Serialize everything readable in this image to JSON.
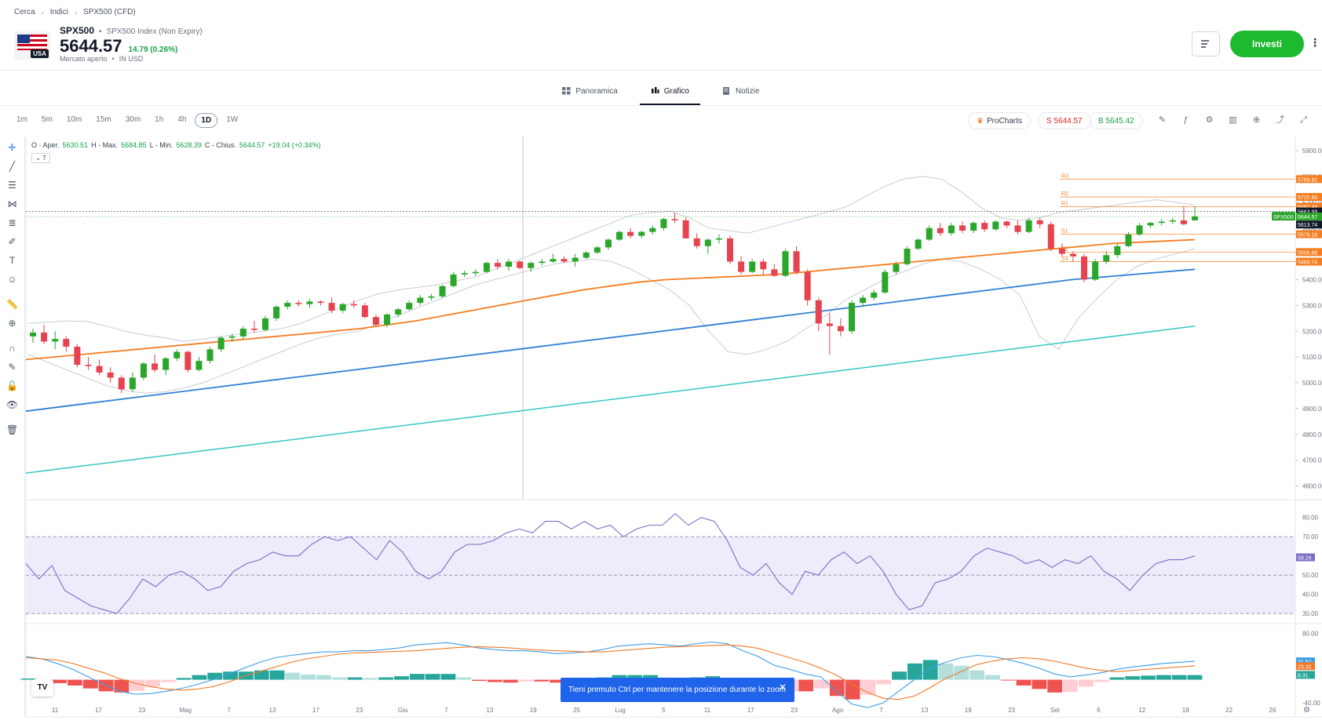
{
  "breadcrumb": [
    "Cerca",
    "Indici",
    "SPX500 (CFD)"
  ],
  "instrument": {
    "ticker": "SPX500",
    "name": "SPX500 Index (Non Expiry)",
    "flag_label": "USA",
    "price": "5644.57",
    "change": "14.79 (0.26%)",
    "status": "Mercato aperto",
    "currency": "IN USD"
  },
  "actions": {
    "invest_label": "Investi",
    "more_label": "⋮"
  },
  "tabs": [
    {
      "label": "Panoramica",
      "active": false
    },
    {
      "label": "Grafico",
      "active": true
    },
    {
      "label": "Notizie",
      "active": false
    }
  ],
  "timeframes": [
    "1m",
    "5m",
    "10m",
    "15m",
    "30m",
    "1h",
    "4h",
    "1D",
    "1W"
  ],
  "active_timeframe": "1D",
  "procharts_label": "ProCharts",
  "sell_label": "S 5644.57",
  "buy_label": "B 5645.42",
  "ohlc": {
    "open_label": "O - Aper.",
    "open": "5630.51",
    "high_label": "H - Max.",
    "high": "5684.85",
    "low_label": "L - Min.",
    "low": "5628.39",
    "close_label": "C - Chius.",
    "close": "5644.57",
    "change": "+19.04 (+0.34%)"
  },
  "collapse_label": "⌄ 7",
  "toast": "Tieni premuto Ctrl per mantenere la posizione durante lo zoom",
  "colors": {
    "up": "#2aa72a",
    "down": "#e5434f",
    "ma_orange": "#f57c1f",
    "ma_blue": "#2f7fd6",
    "ma_teal": "#34c7c4",
    "band": "#c9ccd1",
    "rsi": "#7b6fc4",
    "rsi_fill": "#efebfa",
    "macd_line": "#3e9ee6",
    "signal_line": "#f07a28"
  },
  "chart_data": {
    "type": "candlestick",
    "price_axis": [
      "5900.00",
      "5800.00",
      "5700.00",
      "5600.00",
      "5500.00",
      "5400.00",
      "5300.00",
      "5200.00",
      "5100.00",
      "5000.00",
      "4900.00",
      "4800.00",
      "4700.00",
      "4600.00"
    ],
    "price_range": [
      4550,
      5955
    ],
    "x_labels": [
      "11",
      "17",
      "23",
      "Mag",
      "7",
      "13",
      "17",
      "23",
      "Giu",
      "7",
      "13",
      "19",
      "25",
      "Lug",
      "5",
      "11",
      "17",
      "23",
      "Ago",
      "7",
      "13",
      "19",
      "23",
      "Set",
      "6",
      "12",
      "18",
      "22",
      "26"
    ],
    "candles": [
      [
        5180,
        5210,
        5155,
        5195
      ],
      [
        5195,
        5225,
        5150,
        5160
      ],
      [
        5160,
        5200,
        5130,
        5170
      ],
      [
        5170,
        5180,
        5120,
        5140
      ],
      [
        5140,
        5150,
        5060,
        5070
      ],
      [
        5070,
        5100,
        5050,
        5065
      ],
      [
        5065,
        5090,
        5030,
        5040
      ],
      [
        5040,
        5060,
        5000,
        5020
      ],
      [
        5020,
        5030,
        4960,
        4975
      ],
      [
        4975,
        5040,
        4965,
        5020
      ],
      [
        5020,
        5080,
        5010,
        5075
      ],
      [
        5075,
        5110,
        5040,
        5050
      ],
      [
        5050,
        5100,
        5030,
        5095
      ],
      [
        5095,
        5130,
        5085,
        5120
      ],
      [
        5120,
        5125,
        5040,
        5050
      ],
      [
        5050,
        5100,
        5045,
        5085
      ],
      [
        5085,
        5140,
        5075,
        5130
      ],
      [
        5130,
        5180,
        5120,
        5175
      ],
      [
        5175,
        5190,
        5160,
        5180
      ],
      [
        5180,
        5220,
        5170,
        5210
      ],
      [
        5210,
        5240,
        5195,
        5205
      ],
      [
        5205,
        5260,
        5200,
        5250
      ],
      [
        5250,
        5300,
        5240,
        5295
      ],
      [
        5295,
        5320,
        5285,
        5310
      ],
      [
        5310,
        5320,
        5295,
        5305
      ],
      [
        5305,
        5325,
        5290,
        5315
      ],
      [
        5315,
        5320,
        5300,
        5310
      ],
      [
        5310,
        5330,
        5270,
        5280
      ],
      [
        5280,
        5310,
        5270,
        5305
      ],
      [
        5305,
        5320,
        5290,
        5300
      ],
      [
        5300,
        5310,
        5250,
        5255
      ],
      [
        5255,
        5265,
        5220,
        5225
      ],
      [
        5225,
        5270,
        5215,
        5265
      ],
      [
        5265,
        5290,
        5255,
        5285
      ],
      [
        5285,
        5320,
        5280,
        5310
      ],
      [
        5310,
        5340,
        5300,
        5330
      ],
      [
        5330,
        5345,
        5320,
        5335
      ],
      [
        5335,
        5380,
        5330,
        5375
      ],
      [
        5375,
        5430,
        5370,
        5420
      ],
      [
        5420,
        5435,
        5410,
        5425
      ],
      [
        5425,
        5440,
        5415,
        5430
      ],
      [
        5430,
        5470,
        5425,
        5465
      ],
      [
        5465,
        5480,
        5440,
        5450
      ],
      [
        5450,
        5480,
        5435,
        5470
      ],
      [
        5470,
        5475,
        5440,
        5445
      ],
      [
        5445,
        5470,
        5430,
        5465
      ],
      [
        5465,
        5480,
        5455,
        5470
      ],
      [
        5470,
        5500,
        5465,
        5480
      ],
      [
        5480,
        5490,
        5465,
        5470
      ],
      [
        5470,
        5500,
        5450,
        5485
      ],
      [
        5485,
        5510,
        5480,
        5505
      ],
      [
        5505,
        5530,
        5500,
        5525
      ],
      [
        5525,
        5560,
        5515,
        5555
      ],
      [
        5555,
        5590,
        5550,
        5585
      ],
      [
        5585,
        5600,
        5560,
        5570
      ],
      [
        5570,
        5590,
        5560,
        5585
      ],
      [
        5585,
        5610,
        5575,
        5600
      ],
      [
        5600,
        5640,
        5590,
        5635
      ],
      [
        5635,
        5660,
        5620,
        5630
      ],
      [
        5630,
        5640,
        5560,
        5560
      ],
      [
        5560,
        5580,
        5520,
        5530
      ],
      [
        5530,
        5560,
        5500,
        5555
      ],
      [
        5555,
        5575,
        5540,
        5560
      ],
      [
        5560,
        5570,
        5460,
        5470
      ],
      [
        5470,
        5490,
        5420,
        5430
      ],
      [
        5430,
        5480,
        5425,
        5470
      ],
      [
        5470,
        5480,
        5420,
        5440
      ],
      [
        5440,
        5460,
        5410,
        5415
      ],
      [
        5415,
        5520,
        5410,
        5510
      ],
      [
        5510,
        5530,
        5420,
        5430
      ],
      [
        5430,
        5440,
        5300,
        5320
      ],
      [
        5320,
        5330,
        5200,
        5230
      ],
      [
        5230,
        5270,
        5110,
        5220
      ],
      [
        5220,
        5250,
        5180,
        5200
      ],
      [
        5200,
        5320,
        5190,
        5310
      ],
      [
        5310,
        5340,
        5300,
        5330
      ],
      [
        5330,
        5360,
        5320,
        5350
      ],
      [
        5350,
        5440,
        5345,
        5430
      ],
      [
        5430,
        5470,
        5420,
        5460
      ],
      [
        5460,
        5530,
        5455,
        5520
      ],
      [
        5520,
        5560,
        5515,
        5555
      ],
      [
        5555,
        5610,
        5550,
        5600
      ],
      [
        5600,
        5620,
        5570,
        5580
      ],
      [
        5580,
        5620,
        5570,
        5610
      ],
      [
        5610,
        5625,
        5580,
        5590
      ],
      [
        5590,
        5625,
        5580,
        5620
      ],
      [
        5620,
        5630,
        5585,
        5595
      ],
      [
        5595,
        5630,
        5590,
        5625
      ],
      [
        5625,
        5630,
        5600,
        5610
      ],
      [
        5610,
        5630,
        5575,
        5585
      ],
      [
        5585,
        5640,
        5580,
        5630
      ],
      [
        5630,
        5640,
        5600,
        5615
      ],
      [
        5615,
        5625,
        5510,
        5520
      ],
      [
        5520,
        5540,
        5490,
        5500
      ],
      [
        5500,
        5510,
        5470,
        5490
      ],
      [
        5490,
        5500,
        5390,
        5400
      ],
      [
        5400,
        5480,
        5395,
        5470
      ],
      [
        5470,
        5510,
        5460,
        5495
      ],
      [
        5495,
        5540,
        5485,
        5530
      ],
      [
        5530,
        5585,
        5525,
        5575
      ],
      [
        5575,
        5620,
        5570,
        5610
      ],
      [
        5610,
        5625,
        5600,
        5620
      ],
      [
        5620,
        5635,
        5610,
        5625
      ],
      [
        5625,
        5640,
        5615,
        5630
      ],
      [
        5630,
        5685,
        5610,
        5615
      ],
      [
        5630,
        5685,
        5628,
        5645
      ]
    ],
    "bollinger_upper": [
      5230,
      5235,
      5240,
      5238,
      5220,
      5200,
      5185,
      5175,
      5160,
      5170,
      5180,
      5190,
      5200,
      5210,
      5230,
      5260,
      5290,
      5320,
      5345,
      5360,
      5370,
      5380,
      5395,
      5410,
      5440,
      5470,
      5500,
      5530,
      5560,
      5590,
      5620,
      5650,
      5660,
      5665,
      5640,
      5600,
      5590,
      5580,
      5600,
      5620,
      5640,
      5660,
      5680,
      5720,
      5760,
      5790,
      5800,
      5790,
      5740,
      5680,
      5640,
      5630,
      5640,
      5660,
      5670,
      5680,
      5690,
      5700,
      5710,
      5700,
      5690
    ],
    "bollinger_lower": [
      5110,
      5080,
      5050,
      5020,
      4990,
      4970,
      4960,
      4965,
      4980,
      5000,
      5030,
      5060,
      5090,
      5120,
      5150,
      5175,
      5190,
      5200,
      5230,
      5260,
      5290,
      5320,
      5350,
      5380,
      5400,
      5420,
      5440,
      5460,
      5470,
      5480,
      5470,
      5440,
      5400,
      5360,
      5300,
      5200,
      5120,
      5110,
      5130,
      5160,
      5210,
      5260,
      5320,
      5360,
      5400,
      5430,
      5460,
      5480,
      5470,
      5440,
      5400,
      5340,
      5180,
      5130,
      5250,
      5330,
      5400,
      5450,
      5480,
      5500,
      5520
    ],
    "ma50": [
      5090,
      5100,
      5110,
      5120,
      5130,
      5140,
      5150,
      5160,
      5170,
      5180,
      5190,
      5200,
      5210,
      5225,
      5240,
      5260,
      5280,
      5300,
      5320,
      5340,
      5360,
      5375,
      5390,
      5400,
      5405,
      5410,
      5415,
      5420,
      5430,
      5440,
      5450,
      5460,
      5470,
      5480,
      5490,
      5500,
      5510,
      5520,
      5530,
      5540,
      5545,
      5550,
      5555
    ],
    "ma100": [
      4890,
      4920,
      4950,
      4980,
      5010,
      5040,
      5070,
      5100,
      5130,
      5160,
      5190,
      5220,
      5250,
      5280,
      5310,
      5340,
      5370,
      5400,
      5420,
      5440
    ],
    "ma200": [
      4650,
      4680,
      4710,
      4740,
      4770,
      4800,
      4830,
      4860,
      4890,
      4920,
      4950,
      4980,
      5010,
      5040,
      5070,
      5100,
      5130,
      5160,
      5190,
      5220
    ],
    "pivot_levels": [
      {
        "name": "R3",
        "value": "5789.82",
        "color": "#f57c1f"
      },
      {
        "name": "R2",
        "value": "5720.60",
        "color": "#f57c1f"
      },
      {
        "name": "R1",
        "value": "5682.98",
        "color": "#f57c1f"
      },
      {
        "name": "",
        "value": "5663.99",
        "color": "#111827"
      },
      {
        "name": "",
        "value": "5663.99",
        "color": "#111827"
      },
      {
        "name": "SPX500",
        "value": "5644.57",
        "color": "#2aa72a"
      },
      {
        "name": "",
        "value": "5613.74",
        "color": "#111827"
      },
      {
        "name": "S1",
        "value": "5576.16",
        "color": "#f57c1f"
      },
      {
        "name": "S2",
        "value": "5506.88",
        "color": "#f57c1f"
      },
      {
        "name": "S3",
        "value": "5469.74",
        "color": "#f57c1f"
      }
    ],
    "rsi": {
      "axis": [
        "80.00",
        "70.00",
        "50.00",
        "40.00",
        "30.00"
      ],
      "range": [
        26,
        86
      ],
      "current": "59.26",
      "values": [
        56,
        48,
        55,
        42,
        38,
        34,
        32,
        30,
        38,
        48,
        44,
        50,
        52,
        48,
        42,
        44,
        52,
        56,
        58,
        62,
        60,
        60,
        66,
        70,
        68,
        70,
        64,
        58,
        68,
        62,
        52,
        48,
        52,
        62,
        66,
        66,
        68,
        72,
        74,
        72,
        78,
        78,
        74,
        78,
        74,
        76,
        70,
        74,
        76,
        76,
        82,
        76,
        80,
        78,
        68,
        54,
        50,
        56,
        46,
        40,
        52,
        50,
        58,
        62,
        56,
        60,
        52,
        40,
        32,
        34,
        46,
        48,
        52,
        60,
        64,
        62,
        60,
        56,
        58,
        54,
        58,
        56,
        60,
        52,
        48,
        42,
        50,
        56,
        58,
        58,
        60
      ]
    },
    "macd": {
      "axis": [
        "80.00",
        "-40.00"
      ],
      "range": [
        -52,
        90
      ],
      "current_macd": "31.62",
      "current_signal": "23.32",
      "current_hist": "8.31",
      "macd_line": [
        40,
        36,
        28,
        18,
        5,
        -8,
        -20,
        -25,
        -24,
        -20,
        -15,
        -8,
        0,
        10,
        20,
        30,
        38,
        42,
        45,
        48,
        48,
        50,
        50,
        52,
        55,
        60,
        62,
        64,
        60,
        55,
        52,
        50,
        50,
        48,
        45,
        46,
        48,
        52,
        58,
        60,
        62,
        60,
        58,
        62,
        65,
        62,
        50,
        40,
        25,
        18,
        10,
        5,
        -20,
        -42,
        -48,
        -40,
        -20,
        0,
        20,
        30,
        38,
        42,
        40,
        35,
        28,
        20,
        10,
        5,
        8,
        12,
        18,
        22,
        25,
        28,
        30,
        32
      ],
      "signal_line": [
        38,
        36,
        34,
        28,
        20,
        12,
        2,
        -6,
        -12,
        -16,
        -18,
        -16,
        -12,
        -4,
        6,
        14,
        22,
        30,
        36,
        40,
        44,
        46,
        47,
        48,
        49,
        50,
        52,
        54,
        56,
        57,
        56,
        55,
        53,
        51,
        50,
        49,
        48,
        48,
        50,
        52,
        54,
        56,
        57,
        58,
        59,
        60,
        58,
        54,
        46,
        38,
        30,
        20,
        8,
        -8,
        -22,
        -32,
        -34,
        -28,
        -14,
        2,
        14,
        26,
        32,
        36,
        38,
        36,
        32,
        26,
        20,
        16,
        14,
        16,
        18,
        20,
        22,
        24
      ],
      "histogram": [
        2,
        0,
        -6,
        -10,
        -15,
        -20,
        -22,
        -19,
        -12,
        -4,
        3,
        8,
        12,
        14,
        14,
        16,
        16,
        12,
        9,
        8,
        4,
        4,
        3,
        4,
        6,
        10,
        10,
        10,
        4,
        -2,
        -4,
        -5,
        -3,
        -3,
        -5,
        -3,
        0,
        4,
        8,
        8,
        8,
        4,
        1,
        4,
        6,
        2,
        -8,
        -14,
        -21,
        -20,
        -20,
        -15,
        -28,
        -34,
        -26,
        -8,
        14,
        28,
        34,
        28,
        24,
        16,
        8,
        -1,
        -10,
        -16,
        -22,
        -21,
        -12,
        -4,
        4,
        6,
        7,
        8,
        8,
        8
      ]
    }
  }
}
